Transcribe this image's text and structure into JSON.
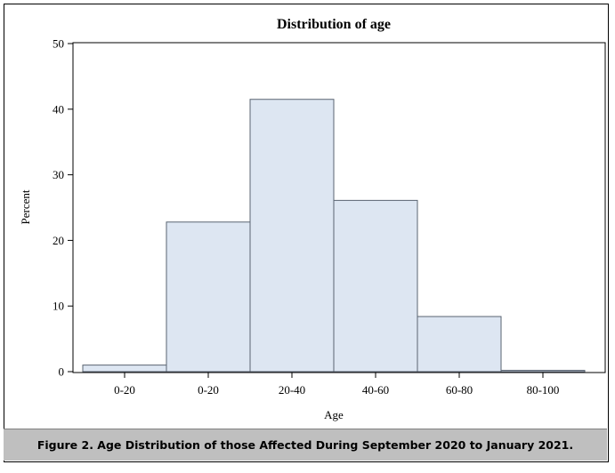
{
  "chart_data": {
    "type": "bar",
    "title": "Distribution of age",
    "xlabel": "Age",
    "ylabel": "Percent",
    "categories": [
      "0-20",
      "0-20",
      "20-40",
      "40-60",
      "60-80",
      "80-100"
    ],
    "values": [
      1.0,
      22.8,
      41.5,
      26.1,
      8.4,
      0.2
    ],
    "ylim": [
      0,
      50
    ],
    "yticks": [
      0,
      10,
      20,
      30,
      40,
      50
    ],
    "grid": false,
    "legend": "none",
    "colors": {
      "bar_fill": "#dde6f2",
      "bar_stroke": "#5a6472",
      "axis": "#000000"
    }
  },
  "caption": {
    "text": "Figure 2. Age Distribution of those Affected During September 2020 to January 2021."
  }
}
